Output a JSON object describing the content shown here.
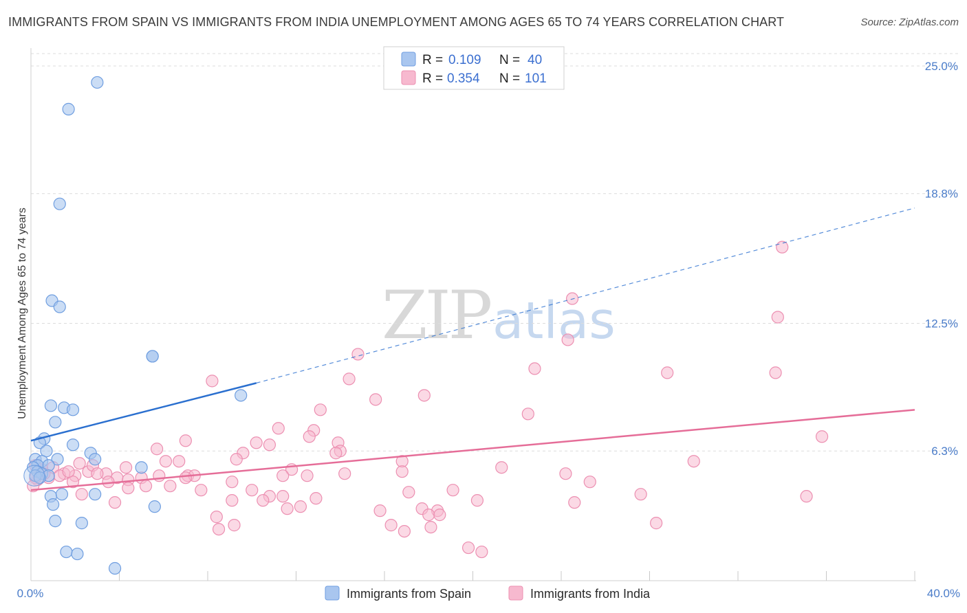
{
  "title": "IMMIGRANTS FROM SPAIN VS IMMIGRANTS FROM INDIA UNEMPLOYMENT AMONG AGES 65 TO 74 YEARS CORRELATION CHART",
  "source": "Source: ZipAtlas.com",
  "watermark": {
    "zip": "ZIP",
    "atlas": "atlas"
  },
  "legend": {
    "spain": {
      "r_label": "R =",
      "r_value": "0.109",
      "n_label": "N =",
      "n_value": "40"
    },
    "india": {
      "r_label": "R =",
      "r_value": "0.354",
      "n_label": "N =",
      "n_value": "101"
    }
  },
  "bottom_legend": {
    "spain": "Immigrants from Spain",
    "india": "Immigrants from India"
  },
  "colors": {
    "spain_fill": "#a9c6ef",
    "spain_stroke": "#6f9ee0",
    "spain_line": "#2a6fcf",
    "india_fill": "#f7b9cf",
    "india_stroke": "#ec8fb1",
    "india_line": "#e56d98",
    "grid": "#dcdcdc",
    "tick_text": "#4a7cc9"
  },
  "chart_data": {
    "type": "scatter",
    "title": "IMMIGRANTS FROM SPAIN VS IMMIGRANTS FROM INDIA UNEMPLOYMENT AMONG AGES 65 TO 74 YEARS CORRELATION CHART",
    "xlabel": "",
    "ylabel": "Unemployment Among Ages 65 to 74 years",
    "xlim": [
      0,
      40
    ],
    "ylim": [
      0,
      25.8
    ],
    "x_tick_labels": [
      "0.0%",
      "40.0%"
    ],
    "y_ticks": [
      6.3,
      12.5,
      18.8,
      25.0
    ],
    "y_tick_labels": [
      "6.3%",
      "12.5%",
      "18.8%",
      "25.0%"
    ],
    "grid": true,
    "series": [
      {
        "name": "Immigrants from Spain",
        "R": 0.109,
        "N": 40,
        "trend": {
          "x0": 0,
          "y0": 6.8,
          "x1": 10.2,
          "y1": 9.6,
          "dashed_to_x": 40,
          "dashed_to_y": 18.1
        },
        "points": [
          [
            3.0,
            24.2
          ],
          [
            1.7,
            22.9
          ],
          [
            1.3,
            18.3
          ],
          [
            0.95,
            13.6
          ],
          [
            1.3,
            13.3
          ],
          [
            5.5,
            10.9
          ],
          [
            5.5,
            10.9
          ],
          [
            9.5,
            9.0
          ],
          [
            0.9,
            8.5
          ],
          [
            1.5,
            8.4
          ],
          [
            1.9,
            8.3
          ],
          [
            1.1,
            7.7
          ],
          [
            0.6,
            6.9
          ],
          [
            1.9,
            6.6
          ],
          [
            0.4,
            6.7
          ],
          [
            0.7,
            6.3
          ],
          [
            2.7,
            6.2
          ],
          [
            0.2,
            5.9
          ],
          [
            0.5,
            5.8
          ],
          [
            1.2,
            5.9
          ],
          [
            2.9,
            5.9
          ],
          [
            0.3,
            5.6
          ],
          [
            0.8,
            5.6
          ],
          [
            0.1,
            5.5
          ],
          [
            0.3,
            5.3
          ],
          [
            0.5,
            5.2
          ],
          [
            0.2,
            5.1
          ],
          [
            0.8,
            5.1
          ],
          [
            0.4,
            5.0
          ],
          [
            5.0,
            5.5
          ],
          [
            0.9,
            4.1
          ],
          [
            1.4,
            4.2
          ],
          [
            2.9,
            4.2
          ],
          [
            1.0,
            3.7
          ],
          [
            5.6,
            3.6
          ],
          [
            1.1,
            2.9
          ],
          [
            2.3,
            2.8
          ],
          [
            1.6,
            1.4
          ],
          [
            2.1,
            1.3
          ],
          [
            3.8,
            0.6
          ]
        ]
      },
      {
        "name": "Immigrants from India",
        "R": 0.354,
        "N": 101,
        "trend": {
          "x0": 0,
          "y0": 4.4,
          "x1": 40,
          "y1": 8.3
        },
        "points": [
          [
            34.0,
            16.2
          ],
          [
            24.5,
            13.7
          ],
          [
            33.8,
            12.8
          ],
          [
            24.3,
            11.7
          ],
          [
            14.8,
            11.0
          ],
          [
            22.8,
            10.3
          ],
          [
            28.8,
            10.1
          ],
          [
            33.7,
            10.1
          ],
          [
            8.2,
            9.7
          ],
          [
            14.4,
            9.8
          ],
          [
            15.6,
            8.8
          ],
          [
            17.8,
            9.0
          ],
          [
            13.1,
            8.3
          ],
          [
            22.5,
            8.1
          ],
          [
            11.2,
            7.4
          ],
          [
            12.8,
            7.3
          ],
          [
            12.6,
            7.0
          ],
          [
            35.8,
            7.0
          ],
          [
            7.0,
            6.8
          ],
          [
            10.2,
            6.7
          ],
          [
            10.8,
            6.6
          ],
          [
            13.9,
            6.7
          ],
          [
            14.0,
            6.3
          ],
          [
            13.8,
            6.2
          ],
          [
            9.6,
            6.2
          ],
          [
            5.7,
            6.4
          ],
          [
            9.3,
            5.9
          ],
          [
            16.8,
            5.8
          ],
          [
            6.1,
            5.8
          ],
          [
            30.0,
            5.8
          ],
          [
            6.7,
            5.8
          ],
          [
            4.3,
            5.5
          ],
          [
            11.8,
            5.4
          ],
          [
            21.3,
            5.5
          ],
          [
            2.2,
            5.7
          ],
          [
            2.6,
            5.3
          ],
          [
            3.4,
            5.2
          ],
          [
            14.2,
            5.2
          ],
          [
            24.2,
            5.2
          ],
          [
            11.4,
            5.1
          ],
          [
            12.5,
            5.1
          ],
          [
            5.8,
            5.1
          ],
          [
            7.1,
            5.1
          ],
          [
            7.4,
            5.1
          ],
          [
            3.9,
            5.0
          ],
          [
            4.4,
            4.9
          ],
          [
            5.0,
            5.0
          ],
          [
            7.0,
            5.0
          ],
          [
            16.8,
            5.3
          ],
          [
            2.0,
            5.1
          ],
          [
            3.5,
            4.8
          ],
          [
            9.1,
            4.8
          ],
          [
            6.3,
            4.6
          ],
          [
            25.3,
            4.8
          ],
          [
            4.4,
            4.5
          ],
          [
            5.2,
            4.6
          ],
          [
            1.9,
            4.8
          ],
          [
            2.3,
            4.2
          ],
          [
            7.7,
            4.4
          ],
          [
            10.0,
            4.4
          ],
          [
            19.1,
            4.4
          ],
          [
            17.1,
            4.3
          ],
          [
            27.6,
            4.2
          ],
          [
            35.1,
            4.1
          ],
          [
            10.8,
            4.1
          ],
          [
            11.4,
            4.1
          ],
          [
            12.9,
            4.0
          ],
          [
            20.2,
            3.9
          ],
          [
            10.5,
            3.9
          ],
          [
            9.1,
            3.9
          ],
          [
            3.8,
            3.8
          ],
          [
            24.6,
            3.8
          ],
          [
            12.2,
            3.6
          ],
          [
            11.6,
            3.5
          ],
          [
            15.8,
            3.4
          ],
          [
            17.7,
            3.5
          ],
          [
            18.4,
            3.4
          ],
          [
            18.0,
            3.2
          ],
          [
            18.5,
            3.2
          ],
          [
            8.4,
            3.1
          ],
          [
            28.3,
            2.8
          ],
          [
            9.2,
            2.7
          ],
          [
            16.3,
            2.7
          ],
          [
            8.5,
            2.5
          ],
          [
            16.9,
            2.4
          ],
          [
            18.1,
            2.6
          ],
          [
            19.8,
            1.6
          ],
          [
            20.4,
            1.4
          ],
          [
            1.0,
            5.5
          ],
          [
            1.5,
            5.2
          ],
          [
            0.5,
            5.4
          ],
          [
            0.8,
            5.0
          ],
          [
            1.3,
            5.1
          ],
          [
            0.3,
            4.9
          ],
          [
            1.7,
            5.3
          ],
          [
            0.2,
            5.6
          ],
          [
            2.8,
            5.6
          ],
          [
            3.0,
            5.2
          ],
          [
            0.6,
            5.2
          ],
          [
            0.2,
            5.0
          ],
          [
            0.1,
            4.6
          ]
        ]
      }
    ]
  }
}
